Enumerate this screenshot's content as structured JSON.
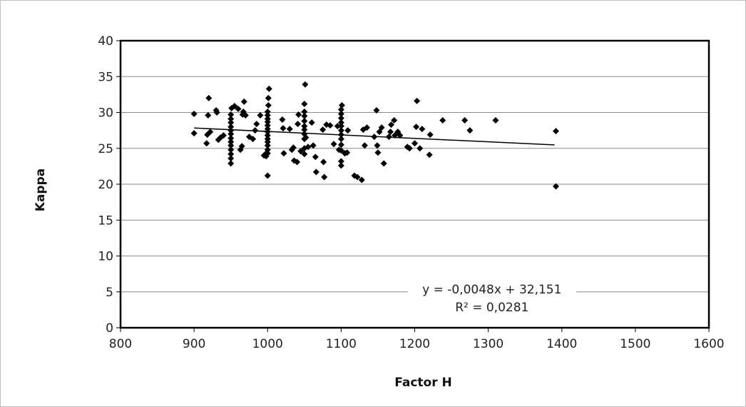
{
  "chart_data": {
    "type": "scatter",
    "title": "",
    "xlabel": "Factor H",
    "ylabel": "Kappa",
    "xlim": [
      800,
      1600
    ],
    "ylim": [
      0,
      40
    ],
    "xticks": [
      800,
      900,
      1000,
      1100,
      1200,
      1300,
      1400,
      1500,
      1600
    ],
    "yticks": [
      0,
      5,
      10,
      15,
      20,
      25,
      30,
      35,
      40
    ],
    "grid": "horizontal major gridlines",
    "legend": "none",
    "marker": "diamond",
    "marker_color": "#000000",
    "series": [
      {
        "points": [
          [
            900,
            29.8
          ],
          [
            900,
            27.1
          ],
          [
            917,
            25.7
          ],
          [
            918,
            26.9
          ],
          [
            919,
            29.6
          ],
          [
            920,
            32.0
          ],
          [
            922,
            27.3
          ],
          [
            930,
            30.3
          ],
          [
            931,
            30.0
          ],
          [
            933,
            26.2
          ],
          [
            936,
            26.5
          ],
          [
            940,
            26.8
          ],
          [
            950,
            22.9
          ],
          [
            950,
            23.6
          ],
          [
            950,
            24.2
          ],
          [
            950,
            24.8
          ],
          [
            950,
            25.4
          ],
          [
            950,
            25.9
          ],
          [
            950,
            26.4
          ],
          [
            950,
            27.0
          ],
          [
            950,
            27.5
          ],
          [
            950,
            28.0
          ],
          [
            950,
            28.6
          ],
          [
            950,
            29.1
          ],
          [
            950,
            29.7
          ],
          [
            951,
            30.6
          ],
          [
            955,
            30.9
          ],
          [
            960,
            30.5
          ],
          [
            963,
            24.8
          ],
          [
            965,
            25.3
          ],
          [
            966,
            29.7
          ],
          [
            967,
            30.1
          ],
          [
            968,
            31.5
          ],
          [
            970,
            29.6
          ],
          [
            975,
            26.6
          ],
          [
            980,
            26.3
          ],
          [
            983,
            27.5
          ],
          [
            985,
            28.4
          ],
          [
            990,
            29.6
          ],
          [
            995,
            24.0
          ],
          [
            997,
            24.2
          ],
          [
            998,
            23.9
          ],
          [
            1000,
            21.2
          ],
          [
            1000,
            24.3
          ],
          [
            1000,
            24.8
          ],
          [
            1000,
            25.4
          ],
          [
            1000,
            25.9
          ],
          [
            1000,
            26.3
          ],
          [
            1000,
            26.8
          ],
          [
            1000,
            27.3
          ],
          [
            1000,
            27.7
          ],
          [
            1000,
            28.2
          ],
          [
            1000,
            28.7
          ],
          [
            1000,
            29.1
          ],
          [
            1000,
            29.6
          ],
          [
            1000,
            30.1
          ],
          [
            1001,
            31.0
          ],
          [
            1001,
            32.0
          ],
          [
            1002,
            33.3
          ],
          [
            1020,
            29.0
          ],
          [
            1021,
            27.8
          ],
          [
            1022,
            24.3
          ],
          [
            1030,
            27.7
          ],
          [
            1033,
            24.8
          ],
          [
            1035,
            25.1
          ],
          [
            1036,
            23.3
          ],
          [
            1040,
            23.1
          ],
          [
            1041,
            28.4
          ],
          [
            1042,
            29.7
          ],
          [
            1045,
            24.6
          ],
          [
            1050,
            24.2
          ],
          [
            1050,
            25.0
          ],
          [
            1050,
            26.3
          ],
          [
            1050,
            27.0
          ],
          [
            1050,
            27.6
          ],
          [
            1050,
            28.1
          ],
          [
            1050,
            28.8
          ],
          [
            1050,
            29.5
          ],
          [
            1050,
            30.1
          ],
          [
            1050,
            31.2
          ],
          [
            1051,
            33.9
          ],
          [
            1052,
            26.5
          ],
          [
            1055,
            25.2
          ],
          [
            1060,
            28.6
          ],
          [
            1062,
            25.4
          ],
          [
            1065,
            23.8
          ],
          [
            1066,
            21.7
          ],
          [
            1075,
            27.6
          ],
          [
            1076,
            23.1
          ],
          [
            1077,
            21.0
          ],
          [
            1080,
            28.3
          ],
          [
            1085,
            28.2
          ],
          [
            1090,
            25.6
          ],
          [
            1095,
            28.1
          ],
          [
            1097,
            24.8
          ],
          [
            1100,
            22.6
          ],
          [
            1100,
            23.2
          ],
          [
            1100,
            24.7
          ],
          [
            1100,
            25.5
          ],
          [
            1100,
            26.3
          ],
          [
            1100,
            26.9
          ],
          [
            1100,
            27.5
          ],
          [
            1100,
            28.1
          ],
          [
            1100,
            28.6
          ],
          [
            1100,
            29.2
          ],
          [
            1100,
            29.8
          ],
          [
            1100,
            30.4
          ],
          [
            1101,
            31.0
          ],
          [
            1105,
            24.3
          ],
          [
            1108,
            24.4
          ],
          [
            1109,
            27.5
          ],
          [
            1118,
            21.2
          ],
          [
            1122,
            21.0
          ],
          [
            1128,
            20.6
          ],
          [
            1130,
            27.6
          ],
          [
            1132,
            25.4
          ],
          [
            1135,
            27.9
          ],
          [
            1145,
            26.6
          ],
          [
            1148,
            30.3
          ],
          [
            1149,
            25.4
          ],
          [
            1150,
            24.4
          ],
          [
            1152,
            27.3
          ],
          [
            1155,
            27.9
          ],
          [
            1158,
            22.9
          ],
          [
            1165,
            26.6
          ],
          [
            1167,
            27.3
          ],
          [
            1168,
            28.3
          ],
          [
            1172,
            28.9
          ],
          [
            1173,
            26.8
          ],
          [
            1177,
            27.3
          ],
          [
            1180,
            26.8
          ],
          [
            1190,
            25.2
          ],
          [
            1193,
            25.0
          ],
          [
            1200,
            25.7
          ],
          [
            1202,
            28.0
          ],
          [
            1203,
            31.6
          ],
          [
            1207,
            25.0
          ],
          [
            1210,
            27.7
          ],
          [
            1220,
            24.1
          ],
          [
            1221,
            26.9
          ],
          [
            1238,
            28.9
          ],
          [
            1268,
            28.9
          ],
          [
            1275,
            27.5
          ],
          [
            1310,
            28.9
          ],
          [
            1392,
            27.4
          ],
          [
            1392,
            19.7
          ]
        ]
      }
    ],
    "trendline": {
      "type": "linear",
      "slope": -0.0048,
      "intercept": 32.151,
      "x_range": [
        900,
        1390
      ],
      "equation_label": "y = -0,0048x + 32,151",
      "r2_label": "R² = 0,0281"
    }
  }
}
